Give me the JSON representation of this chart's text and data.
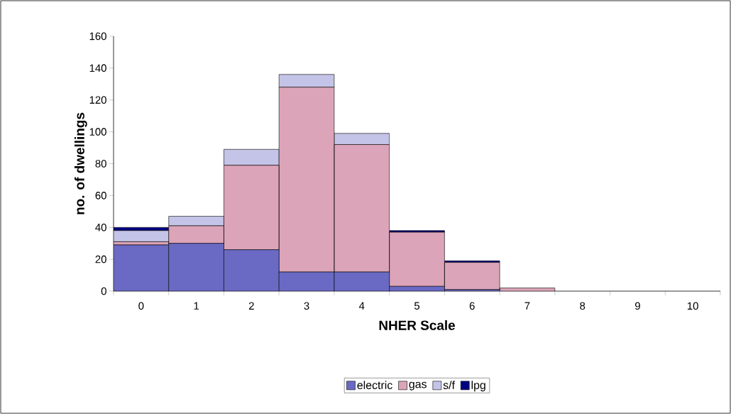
{
  "chart_data": {
    "type": "bar",
    "stacked": true,
    "xlabel": "NHER Scale",
    "ylabel": "no. of dwellings",
    "categories": [
      "0",
      "1",
      "2",
      "3",
      "4",
      "5",
      "6",
      "7",
      "8",
      "9",
      "10"
    ],
    "series": [
      {
        "name": "electric",
        "color": "#6a6ac4",
        "values": [
          29,
          30,
          26,
          12,
          12,
          3,
          1,
          0,
          0,
          0,
          0
        ]
      },
      {
        "name": "gas",
        "color": "#dca4b8",
        "values": [
          2,
          11,
          53,
          116,
          80,
          34,
          17,
          2,
          0,
          0,
          0
        ]
      },
      {
        "name": "s/f",
        "color": "#c4c4e8",
        "values": [
          7,
          6,
          10,
          8,
          7,
          0,
          0,
          0,
          0,
          0,
          0
        ]
      },
      {
        "name": "lpg",
        "color": "#000080",
        "values": [
          2,
          0,
          0,
          0,
          0,
          1,
          1,
          0,
          0,
          0,
          0
        ]
      }
    ],
    "ylim": [
      0,
      160
    ],
    "yticks": [
      0,
      20,
      40,
      60,
      80,
      100,
      120,
      140,
      160
    ],
    "grid": false,
    "legend": "bottom"
  }
}
